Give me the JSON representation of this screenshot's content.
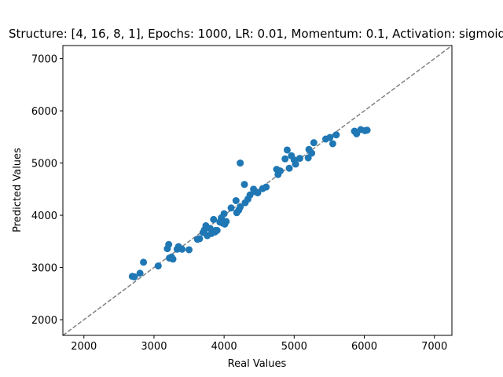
{
  "chart_data": {
    "type": "scatter",
    "title": "Structure: [4, 16, 8, 1], Epochs: 1000, LR: 0.01, Momentum: 0.1, Activation: sigmoid",
    "xlabel": "Real Values",
    "ylabel": "Predicted Values",
    "xlim": [
      1700,
      7250
    ],
    "ylim": [
      1700,
      7250
    ],
    "xticks": [
      2000,
      3000,
      4000,
      5000,
      6000,
      7000
    ],
    "yticks": [
      2000,
      3000,
      4000,
      5000,
      6000,
      7000
    ],
    "grid": false,
    "reference_line": {
      "style": "dashed",
      "color": "#808080",
      "from": [
        1700,
        1700
      ],
      "to": [
        7250,
        7250
      ]
    },
    "point_color": "#1f77b4",
    "points": [
      [
        2690,
        2830
      ],
      [
        2720,
        2820
      ],
      [
        2800,
        2890
      ],
      [
        2850,
        3100
      ],
      [
        3060,
        3030
      ],
      [
        3190,
        3360
      ],
      [
        3210,
        3440
      ],
      [
        3220,
        3180
      ],
      [
        3250,
        3200
      ],
      [
        3270,
        3160
      ],
      [
        3330,
        3350
      ],
      [
        3350,
        3400
      ],
      [
        3400,
        3350
      ],
      [
        3500,
        3340
      ],
      [
        3620,
        3540
      ],
      [
        3650,
        3550
      ],
      [
        3700,
        3670
      ],
      [
        3720,
        3720
      ],
      [
        3740,
        3800
      ],
      [
        3760,
        3610
      ],
      [
        3800,
        3750
      ],
      [
        3820,
        3650
      ],
      [
        3850,
        3920
      ],
      [
        3870,
        3680
      ],
      [
        3880,
        3710
      ],
      [
        3900,
        3710
      ],
      [
        3940,
        3870
      ],
      [
        3960,
        3950
      ],
      [
        3980,
        3850
      ],
      [
        4000,
        4030
      ],
      [
        4010,
        3830
      ],
      [
        4030,
        3880
      ],
      [
        4100,
        4140
      ],
      [
        4170,
        4280
      ],
      [
        4180,
        4050
      ],
      [
        4210,
        4100
      ],
      [
        4230,
        4160
      ],
      [
        4230,
        5000
      ],
      [
        4290,
        4590
      ],
      [
        4300,
        4240
      ],
      [
        4340,
        4310
      ],
      [
        4370,
        4390
      ],
      [
        4420,
        4500
      ],
      [
        4450,
        4450
      ],
      [
        4480,
        4430
      ],
      [
        4550,
        4510
      ],
      [
        4600,
        4540
      ],
      [
        4750,
        4880
      ],
      [
        4770,
        4780
      ],
      [
        4800,
        4850
      ],
      [
        4870,
        5080
      ],
      [
        4900,
        5250
      ],
      [
        4930,
        4900
      ],
      [
        4960,
        5140
      ],
      [
        5000,
        5060
      ],
      [
        5020,
        4980
      ],
      [
        5080,
        5090
      ],
      [
        5200,
        5100
      ],
      [
        5210,
        5260
      ],
      [
        5250,
        5190
      ],
      [
        5280,
        5390
      ],
      [
        5450,
        5460
      ],
      [
        5510,
        5490
      ],
      [
        5550,
        5370
      ],
      [
        5600,
        5540
      ],
      [
        5860,
        5610
      ],
      [
        5890,
        5560
      ],
      [
        5950,
        5640
      ],
      [
        6010,
        5620
      ],
      [
        6040,
        5630
      ]
    ]
  }
}
